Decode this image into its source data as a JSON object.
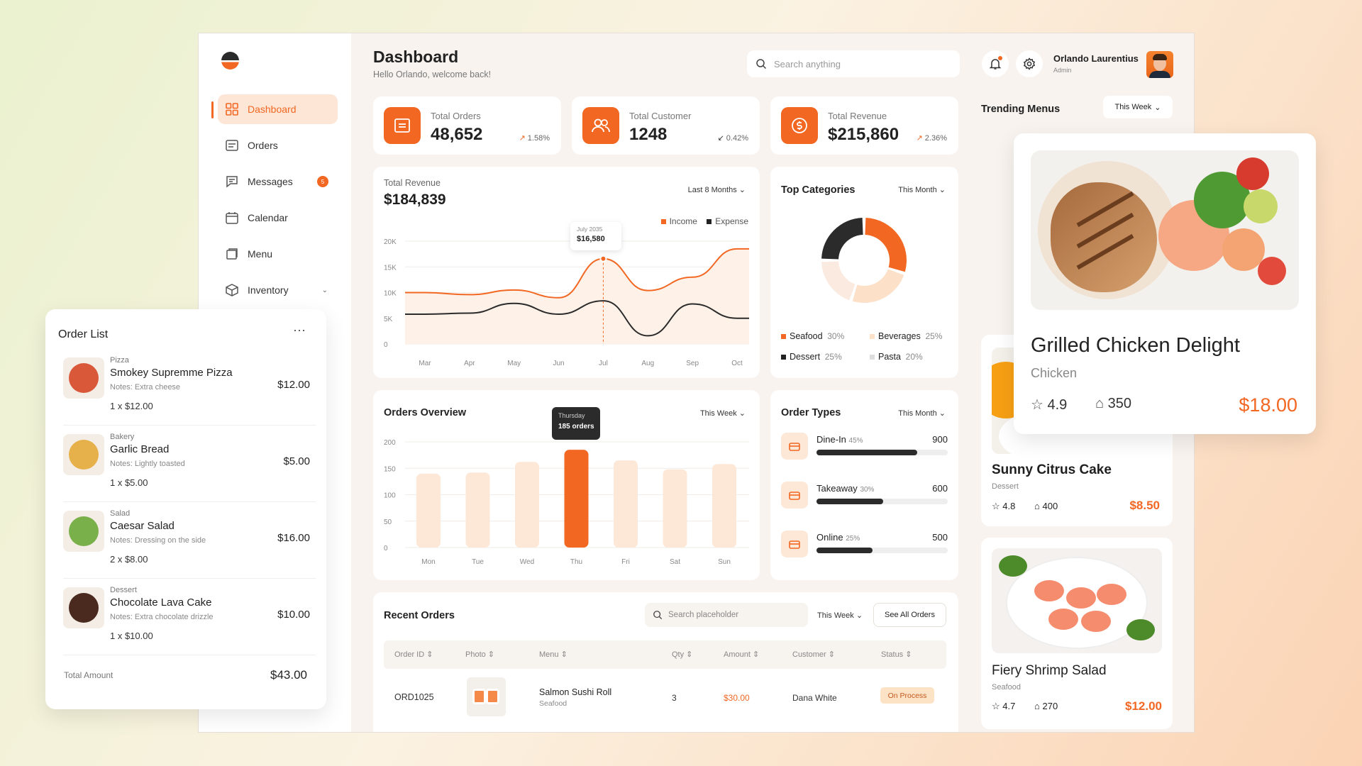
{
  "sidebar": {
    "items": [
      {
        "label": "Dashboard"
      },
      {
        "label": "Orders"
      },
      {
        "label": "Messages",
        "badge": "5"
      },
      {
        "label": "Calendar"
      },
      {
        "label": "Menu"
      },
      {
        "label": "Inventory"
      }
    ]
  },
  "header": {
    "title": "Dashboard",
    "subtitle": "Hello Orlando, welcome back!",
    "search_placeholder": "Search anything",
    "user_name": "Orlando Laurentius",
    "user_role": "Admin"
  },
  "stats": [
    {
      "label": "Total Orders",
      "value": "48,652",
      "change": "1.58%"
    },
    {
      "label": "Total Customer",
      "value": "1248",
      "change": "0.42%"
    },
    {
      "label": "Total Revenue",
      "value": "$215,860",
      "change": "2.36%"
    }
  ],
  "revenue": {
    "label": "Total Revenue",
    "value": "$184,839",
    "period": "Last 8 Months",
    "legend_income": "Income",
    "legend_expense": "Expense",
    "tooltip_date": "July 2035",
    "tooltip_value": "$16,580"
  },
  "categories": {
    "title": "Top Categories",
    "period": "This Month",
    "items": [
      {
        "name": "Seafood",
        "pct": "30%",
        "value": 30,
        "color": "#f26722"
      },
      {
        "name": "Beverages",
        "pct": "25%",
        "value": 25,
        "color": "#fde0c8"
      },
      {
        "name": "Pasta",
        "pct": "20%",
        "value": 20,
        "color": "#fbeadf"
      },
      {
        "name": "Dessert",
        "pct": "25%",
        "value": 25,
        "color": "#2b2b2b"
      }
    ]
  },
  "orders_overview": {
    "title": "Orders Overview",
    "period": "This Week",
    "tooltip_day": "Thursday",
    "tooltip_value": "185 orders"
  },
  "order_types": {
    "title": "Order Types",
    "period": "This Month",
    "items": [
      {
        "name": "Dine-In",
        "pct": "45%",
        "count": "900",
        "fraction": 0.45
      },
      {
        "name": "Takeaway",
        "pct": "30%",
        "count": "600",
        "fraction": 0.3
      },
      {
        "name": "Online",
        "pct": "25%",
        "count": "500",
        "fraction": 0.25
      }
    ]
  },
  "recent_orders": {
    "title": "Recent Orders",
    "search_placeholder": "Search placeholder",
    "period": "This Week",
    "see_all": "See All Orders",
    "columns": [
      "Order ID",
      "Photo",
      "Menu",
      "Qty",
      "Amount",
      "Customer",
      "Status"
    ],
    "rows": [
      {
        "id": "ORD1025",
        "menu": "Salmon Sushi Roll",
        "category": "Seafood",
        "qty": "3",
        "amount": "$30.00",
        "customer": "Dana White",
        "status": "On Process"
      }
    ]
  },
  "trending": {
    "title": "Trending Menus",
    "period": "This Week",
    "featured": {
      "name": "Grilled Chicken Delight",
      "category": "Chicken",
      "rating": "4.9",
      "sold": "350",
      "price": "$18.00"
    },
    "items": [
      {
        "name": "Sunny Citrus Cake",
        "category": "Dessert",
        "rating": "4.8",
        "sold": "400",
        "price": "$8.50"
      },
      {
        "name": "Fiery Shrimp Salad",
        "category": "Seafood",
        "rating": "4.7",
        "sold": "270",
        "price": "$12.00"
      }
    ]
  },
  "order_list": {
    "title": "Order List",
    "items": [
      {
        "category": "Pizza",
        "name": "Smokey Supremme Pizza",
        "notes": "Notes:  Extra cheese",
        "qty": "1 x $12.00",
        "price": "$12.00"
      },
      {
        "category": "Bakery",
        "name": "Garlic Bread",
        "notes": "Notes:  Lightly toasted",
        "qty": "1 x $5.00",
        "price": "$5.00"
      },
      {
        "category": "Salad",
        "name": "Caesar Salad",
        "notes": "Notes:  Dressing on the side",
        "qty": "2 x $8.00",
        "price": "$16.00"
      },
      {
        "category": "Dessert",
        "name": "Chocolate Lava Cake",
        "notes": "Notes:  Extra chocolate drizzle",
        "qty": "1 x $10.00",
        "price": "$10.00"
      }
    ],
    "total_label": "Total Amount",
    "total": "$43.00"
  },
  "chart_data": [
    {
      "type": "line",
      "x": [
        "Mar",
        "Apr",
        "May",
        "Jun",
        "Jul",
        "Aug",
        "Sep",
        "Oct"
      ],
      "series": [
        {
          "name": "Income",
          "values": [
            10000,
            9600,
            10500,
            9000,
            16580,
            10400,
            13000,
            18500
          ]
        },
        {
          "name": "Expense",
          "values": [
            5800,
            6000,
            7900,
            5800,
            8400,
            1600,
            7800,
            5000
          ]
        }
      ],
      "yticks": [
        "20K",
        "15K",
        "10K",
        "5K",
        "0"
      ],
      "ylim": [
        0,
        20000
      ],
      "grid": true,
      "legend": "top-right"
    },
    {
      "type": "bar",
      "categories": [
        "Mon",
        "Tue",
        "Wed",
        "Thu",
        "Fri",
        "Sat",
        "Sun"
      ],
      "values": [
        140,
        142,
        162,
        185,
        165,
        148,
        158
      ],
      "yticks": [
        "200",
        "150",
        "100",
        "50",
        "0"
      ],
      "ylim": [
        0,
        200
      ],
      "highlight": "Thu",
      "grid": true
    }
  ]
}
